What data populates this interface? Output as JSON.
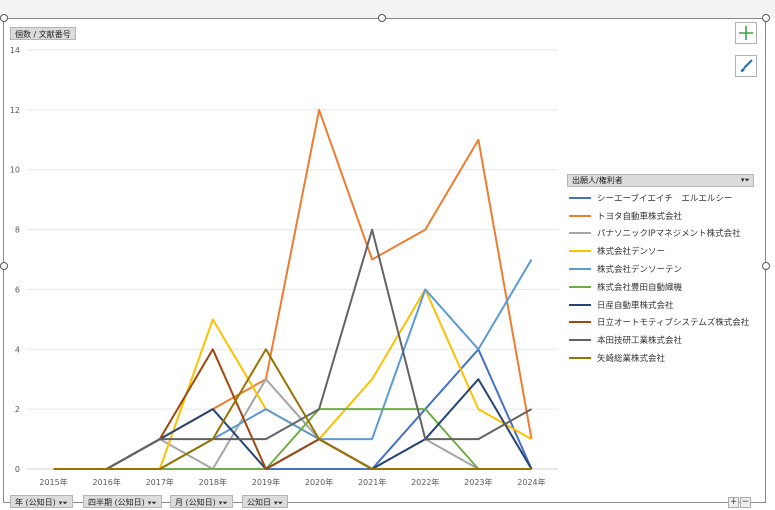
{
  "field_buttons": {
    "value_field": "個数 / 文献番号",
    "legend_field": "出願人/権利者",
    "axis_fields": [
      "年 (公知日)",
      "四半期 (公知日)",
      "月 (公知日)",
      "公知日"
    ]
  },
  "icons": {
    "add": "plus-icon",
    "style": "brush-icon",
    "filter": "filter-icon"
  },
  "zoom": {
    "plus": "+",
    "minus": "−"
  },
  "chart_data": {
    "type": "line",
    "title": "",
    "xlabel": "",
    "ylabel": "",
    "categories": [
      "2015年",
      "2016年",
      "2017年",
      "2018年",
      "2019年",
      "2020年",
      "2021年",
      "2022年",
      "2023年",
      "2024年"
    ],
    "ylim": [
      0,
      14
    ],
    "yticks": [
      0,
      2,
      4,
      6,
      8,
      10,
      12,
      14
    ],
    "grid": true,
    "legend_position": "right",
    "series": [
      {
        "name": "シーエーブイエイチ　エルエルシー",
        "color": "#4472c4",
        "values": [
          0,
          0,
          0,
          0,
          0,
          0,
          0,
          2,
          4,
          0
        ]
      },
      {
        "name": "トヨタ自動車株式会社",
        "color": "#ed7d31",
        "values": [
          0,
          0,
          1,
          2,
          3,
          12,
          7,
          8,
          11,
          1
        ]
      },
      {
        "name": "パナソニックIPマネジメント株式会社",
        "color": "#a5a5a5",
        "values": [
          0,
          0,
          1,
          0,
          3,
          1,
          0,
          1,
          0,
          0
        ]
      },
      {
        "name": "株式会社デンソー",
        "color": "#ffc000",
        "values": [
          0,
          0,
          0,
          5,
          2,
          1,
          3,
          6,
          2,
          1
        ]
      },
      {
        "name": "株式会社デンソーテン",
        "color": "#5b9bd5",
        "values": [
          0,
          0,
          0,
          1,
          2,
          1,
          1,
          6,
          4,
          7
        ]
      },
      {
        "name": "株式会社豊田自動織機",
        "color": "#70ad47",
        "values": [
          0,
          0,
          0,
          0,
          0,
          2,
          2,
          2,
          0,
          0
        ]
      },
      {
        "name": "日産自動車株式会社",
        "color": "#264478",
        "values": [
          0,
          0,
          1,
          2,
          0,
          1,
          0,
          1,
          3,
          0
        ]
      },
      {
        "name": "日立オートモティブシステムズ株式会社",
        "color": "#9e480e",
        "values": [
          0,
          0,
          1,
          4,
          0,
          1,
          0,
          0,
          0,
          0
        ]
      },
      {
        "name": "本田技研工業株式会社",
        "color": "#636363",
        "values": [
          0,
          0,
          1,
          1,
          1,
          2,
          8,
          1,
          1,
          2
        ]
      },
      {
        "name": "矢崎総業株式会社",
        "color": "#997300",
        "values": [
          0,
          0,
          0,
          1,
          4,
          1,
          0,
          0,
          0,
          0
        ]
      }
    ]
  }
}
